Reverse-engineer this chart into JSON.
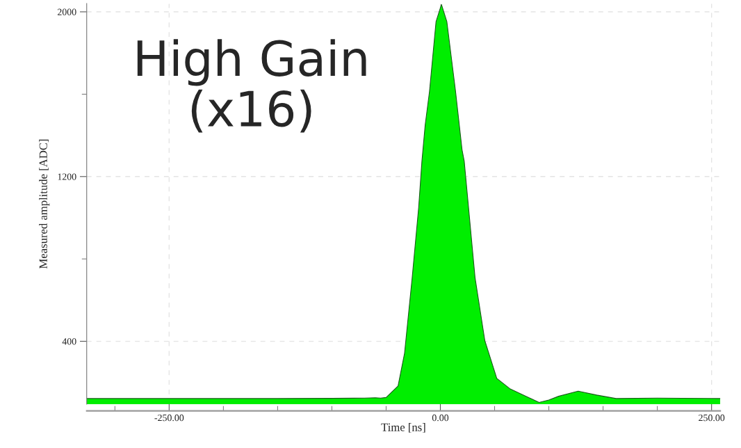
{
  "chart_data": {
    "type": "area",
    "xlabel": "Time [ns]",
    "ylabel": "Measured amplitude [ADC]",
    "annotations": [
      "High Gain\n(x16)"
    ],
    "series": [
      {
        "color": "#00ee00",
        "x": [
          -326,
          -250,
          -150,
          -100,
          -70,
          -60,
          -55,
          -50,
          -39,
          -33,
          -26,
          -20,
          -17,
          -14,
          -10,
          -4,
          1,
          6,
          14,
          20,
          22,
          32,
          41,
          52,
          64,
          80,
          91,
          100,
          109,
          127,
          144,
          162,
          200,
          258
        ],
        "values": [
          122,
          122,
          122,
          123,
          124,
          126,
          124,
          127,
          183,
          342,
          708,
          1050,
          1275,
          1450,
          1614,
          1952,
          2036,
          1952,
          1614,
          1330,
          1275,
          708,
          403,
          220,
          170,
          130,
          103,
          115,
          133,
          158,
          139,
          122,
          124,
          122
        ]
      }
    ],
    "xlim": [
      -326,
      258
    ],
    "ylim": [
      95,
      2040
    ],
    "xticks": [
      {
        "value": -300,
        "label": null
      },
      {
        "value": -250,
        "label": "-250.00"
      },
      {
        "value": -200,
        "label": null
      },
      {
        "value": -150,
        "label": null
      },
      {
        "value": -100,
        "label": null
      },
      {
        "value": -50,
        "label": null
      },
      {
        "value": 0,
        "label": "0.00"
      },
      {
        "value": 50,
        "label": null
      },
      {
        "value": 100,
        "label": null
      },
      {
        "value": 150,
        "label": null
      },
      {
        "value": 200,
        "label": null
      },
      {
        "value": 250,
        "label": "250.00"
      }
    ],
    "yticks": [
      400,
      {
        "value": 800,
        "label": null
      },
      1200,
      {
        "value": 1600,
        "label": null
      },
      2000
    ],
    "grid": true,
    "marker": "none",
    "line_style": "solid",
    "legend": false
  }
}
